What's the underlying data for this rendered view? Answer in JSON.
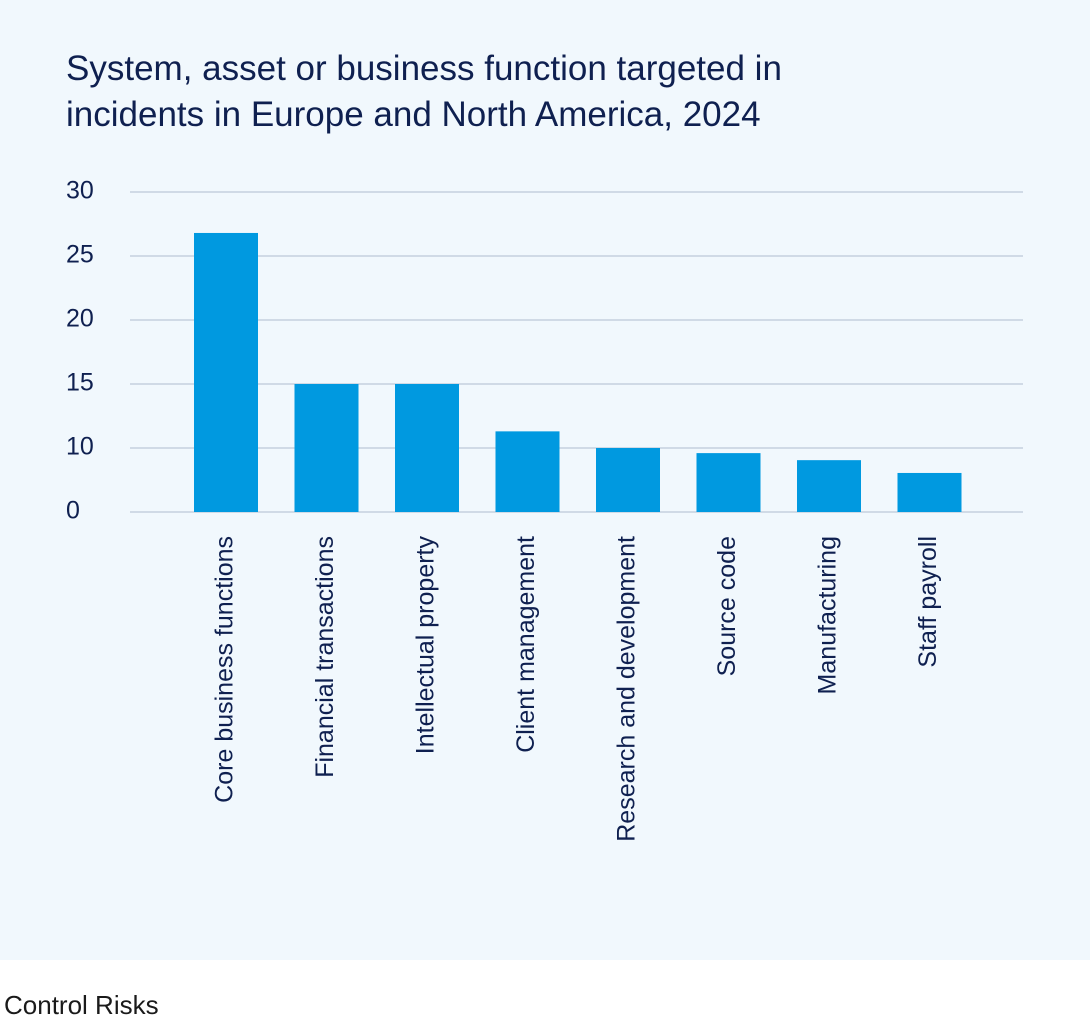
{
  "title_lines": [
    "System, asset or business function targeted in",
    "incidents in Europe and North America, 2024"
  ],
  "source": "Control Risks",
  "colors": {
    "panel_background": "#f1f8fd",
    "bar": "#0099e0",
    "grid": "#c6d0de",
    "text": "#0f2050"
  },
  "chart_data": {
    "type": "bar",
    "title": "System, asset or business function targeted in incidents in Europe and North America, 2024",
    "xlabel": "",
    "ylabel": "",
    "categories": [
      "Core business functions",
      "Financial transactions",
      "Intellectual property",
      "Client management",
      "Research and development",
      "Source code",
      "Manufacturing",
      "Staff payroll"
    ],
    "values": [
      26.8,
      15,
      15,
      11.3,
      10,
      9.2,
      8.1,
      6.1
    ],
    "y_ticks": [
      0,
      10,
      15,
      20,
      25,
      30
    ],
    "grid": true,
    "legend": "none"
  }
}
